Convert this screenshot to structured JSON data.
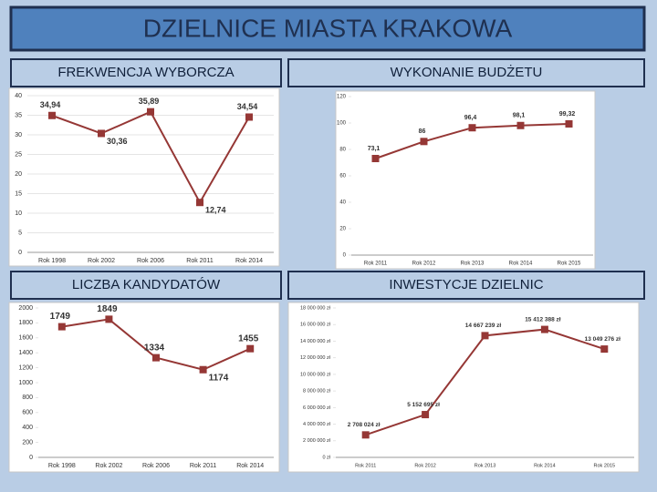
{
  "title": "DZIELNICE MIASTA KRAKOWA",
  "chart_data": [
    {
      "type": "line",
      "title": "FREKWENCJA WYBORCZA",
      "categories": [
        "Rok 1998",
        "Rok 2002",
        "Rok 2006",
        "Rok 2011",
        "Rok 2014"
      ],
      "values": [
        34.94,
        30.36,
        35.89,
        12.74,
        34.54
      ],
      "value_labels": [
        "34,94",
        "30,36",
        "35,89",
        "12,74",
        "34,54"
      ],
      "color": "#953735",
      "ylim": [
        0,
        40
      ],
      "yticks": [
        0,
        5,
        10,
        15,
        20,
        25,
        30,
        35,
        40
      ],
      "grid": true
    },
    {
      "type": "line",
      "title": "WYKONANIE BUDŻETU",
      "categories": [
        "Rok 2011",
        "Rok 2012",
        "Rok 2013",
        "Rok 2014",
        "Rok 2015"
      ],
      "values": [
        73.1,
        86,
        96.4,
        98.1,
        99.32
      ],
      "value_labels": [
        "73,1",
        "86",
        "96,4",
        "98,1",
        "99,32"
      ],
      "color": "#953735",
      "ylim": [
        0,
        120
      ],
      "yticks": [
        0,
        20,
        40,
        60,
        80,
        100,
        120
      ],
      "grid": false
    },
    {
      "type": "line",
      "title": "LICZBA KANDYDATÓW",
      "categories": [
        "Rok 1998",
        "Rok 2002",
        "Rok 2006",
        "Rok 2011",
        "Rok 2014"
      ],
      "values": [
        1749,
        1849,
        1334,
        1174,
        1455
      ],
      "color": "#953735",
      "ylim": [
        0,
        2000
      ],
      "yticks": [
        0,
        200,
        400,
        600,
        800,
        1000,
        1200,
        1400,
        1600,
        1800,
        2000
      ],
      "grid": false
    },
    {
      "type": "line",
      "title": "INWESTYCJE DZIELNIC",
      "categories": [
        "Rok 2011",
        "Rok 2012",
        "Rok 2013",
        "Rok 2014",
        "Rok 2015"
      ],
      "values": [
        2708024,
        5152695,
        14667239,
        15412388,
        13049276
      ],
      "value_labels": [
        "2 708 024 zł",
        "5 152 695 zł",
        "14 667 239 zł",
        "15 412 388 zł",
        "13 049 276 zł"
      ],
      "color": "#953735",
      "ylim": [
        0,
        18000000
      ],
      "yticks": [
        {
          "value": 0,
          "label": "0 zł"
        },
        {
          "value": 2000000,
          "label": "2 000 000 zł"
        },
        {
          "value": 4000000,
          "label": "4 000 000 zł"
        },
        {
          "value": 6000000,
          "label": "6 000 000 zł"
        },
        {
          "value": 8000000,
          "label": "8 000 000 zł"
        },
        {
          "value": 10000000,
          "label": "10 000 000 zł"
        },
        {
          "value": 12000000,
          "label": "12 000 000 zł"
        },
        {
          "value": 14000000,
          "label": "14 000 000 zł"
        },
        {
          "value": 16000000,
          "label": "16 000 000 zł"
        },
        {
          "value": 18000000,
          "label": "18 000 000 zł"
        }
      ],
      "grid": false
    }
  ]
}
